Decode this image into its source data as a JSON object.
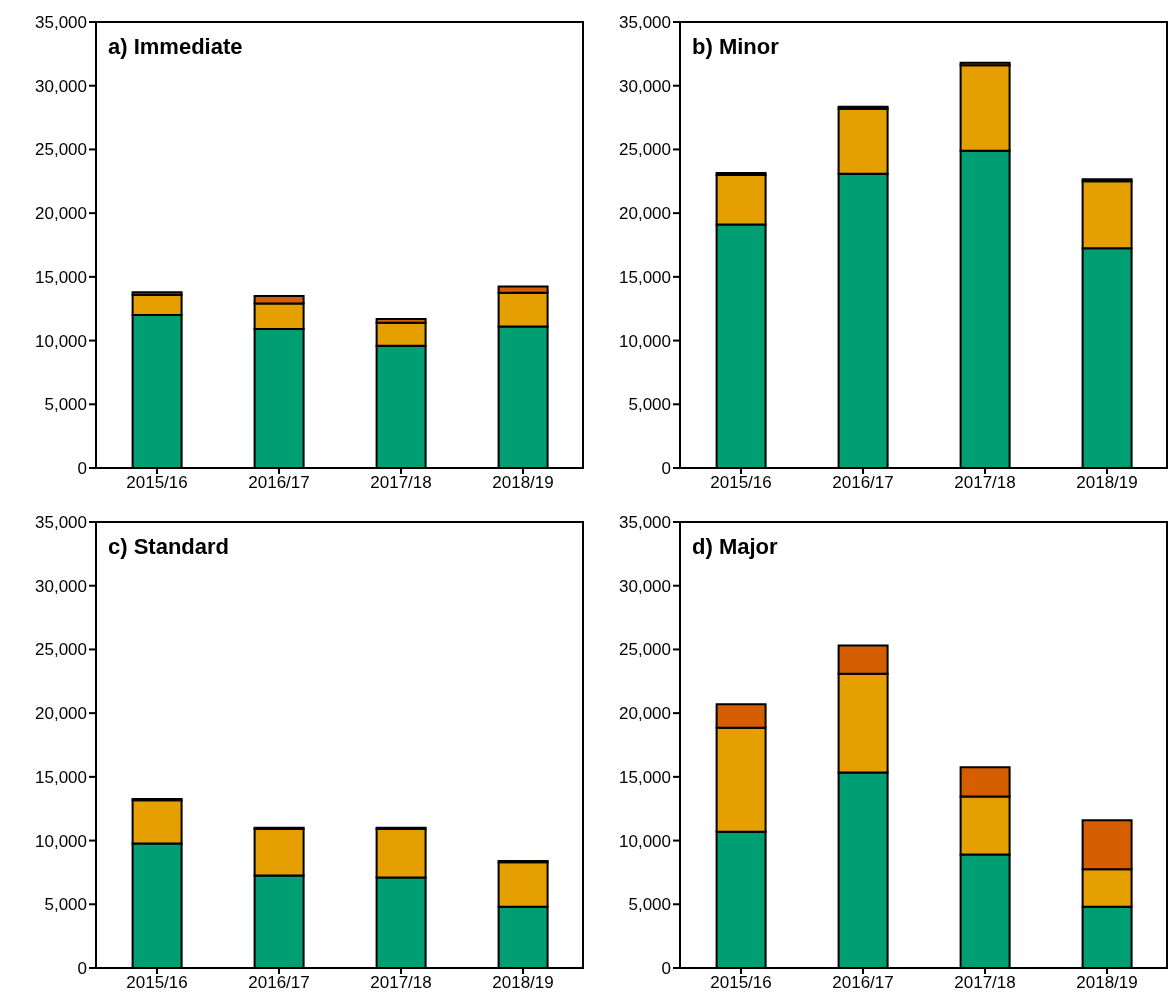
{
  "chart_data": [
    {
      "type": "bar",
      "title": "a) Immediate",
      "stacked": true,
      "categories": [
        "2015/16",
        "2016/17",
        "2017/18",
        "2018/19"
      ],
      "ylim": [
        0,
        35000
      ],
      "yticks": [
        {
          "value": 0,
          "label": "0"
        },
        {
          "value": 5000,
          "label": "5,000"
        },
        {
          "value": 10000,
          "label": "10,000"
        },
        {
          "value": 15000,
          "label": "15,000"
        },
        {
          "value": 20000,
          "label": "20,000"
        },
        {
          "value": 25000,
          "label": "25,000"
        },
        {
          "value": 30000,
          "label": "30,000"
        },
        {
          "value": 35000,
          "label": "35,000"
        }
      ],
      "grid": false,
      "legend": false,
      "series": [
        {
          "color": "#009e73",
          "values": [
            12000,
            10900,
            9600,
            11100
          ]
        },
        {
          "color": "#e69f00",
          "values": [
            1600,
            2000,
            1800,
            2650
          ]
        },
        {
          "color": "#d55e00",
          "values": [
            200,
            600,
            300,
            500
          ]
        }
      ]
    },
    {
      "type": "bar",
      "title": "b) Minor",
      "stacked": true,
      "categories": [
        "2015/16",
        "2016/17",
        "2017/18",
        "2018/19"
      ],
      "ylim": [
        0,
        35000
      ],
      "yticks": [
        {
          "value": 0,
          "label": "0"
        },
        {
          "value": 5000,
          "label": "5,000"
        },
        {
          "value": 10000,
          "label": "10,000"
        },
        {
          "value": 15000,
          "label": "15,000"
        },
        {
          "value": 20000,
          "label": "20,000"
        },
        {
          "value": 25000,
          "label": "25,000"
        },
        {
          "value": 30000,
          "label": "30,000"
        },
        {
          "value": 35000,
          "label": "35,000"
        }
      ],
      "grid": false,
      "legend": false,
      "series": [
        {
          "color": "#009e73",
          "values": [
            19100,
            23100,
            24900,
            17250
          ]
        },
        {
          "color": "#e69f00",
          "values": [
            3900,
            5100,
            6700,
            5250
          ]
        },
        {
          "color": "#d55e00",
          "values": [
            150,
            150,
            200,
            150
          ]
        }
      ]
    },
    {
      "type": "bar",
      "title": "c) Standard",
      "stacked": true,
      "categories": [
        "2015/16",
        "2016/17",
        "2017/18",
        "2018/19"
      ],
      "ylim": [
        0,
        35000
      ],
      "yticks": [
        {
          "value": 0,
          "label": "0"
        },
        {
          "value": 5000,
          "label": "5,000"
        },
        {
          "value": 10000,
          "label": "10,000"
        },
        {
          "value": 15000,
          "label": "15,000"
        },
        {
          "value": 20000,
          "label": "20,000"
        },
        {
          "value": 25000,
          "label": "25,000"
        },
        {
          "value": 30000,
          "label": "30,000"
        },
        {
          "value": 35000,
          "label": "35,000"
        }
      ],
      "grid": false,
      "legend": false,
      "series": [
        {
          "color": "#009e73",
          "values": [
            9770,
            7250,
            7100,
            4800
          ]
        },
        {
          "color": "#e69f00",
          "values": [
            3400,
            3650,
            3800,
            3500
          ]
        },
        {
          "color": "#d55e00",
          "values": [
            100,
            100,
            100,
            100
          ]
        }
      ]
    },
    {
      "type": "bar",
      "title": "d) Major",
      "stacked": true,
      "categories": [
        "2015/16",
        "2016/17",
        "2017/18",
        "2018/19"
      ],
      "ylim": [
        0,
        35000
      ],
      "yticks": [
        {
          "value": 0,
          "label": "0"
        },
        {
          "value": 5000,
          "label": "5,000"
        },
        {
          "value": 10000,
          "label": "10,000"
        },
        {
          "value": 15000,
          "label": "15,000"
        },
        {
          "value": 20000,
          "label": "20,000"
        },
        {
          "value": 25000,
          "label": "25,000"
        },
        {
          "value": 30000,
          "label": "30,000"
        },
        {
          "value": 35000,
          "label": "35,000"
        }
      ],
      "grid": false,
      "legend": false,
      "series": [
        {
          "color": "#009e73",
          "values": [
            10700,
            15350,
            8900,
            4800
          ]
        },
        {
          "color": "#e69f00",
          "values": [
            8150,
            7750,
            4550,
            2950
          ]
        },
        {
          "color": "#d55e00",
          "values": [
            1850,
            2200,
            2300,
            3850
          ]
        }
      ]
    }
  ]
}
